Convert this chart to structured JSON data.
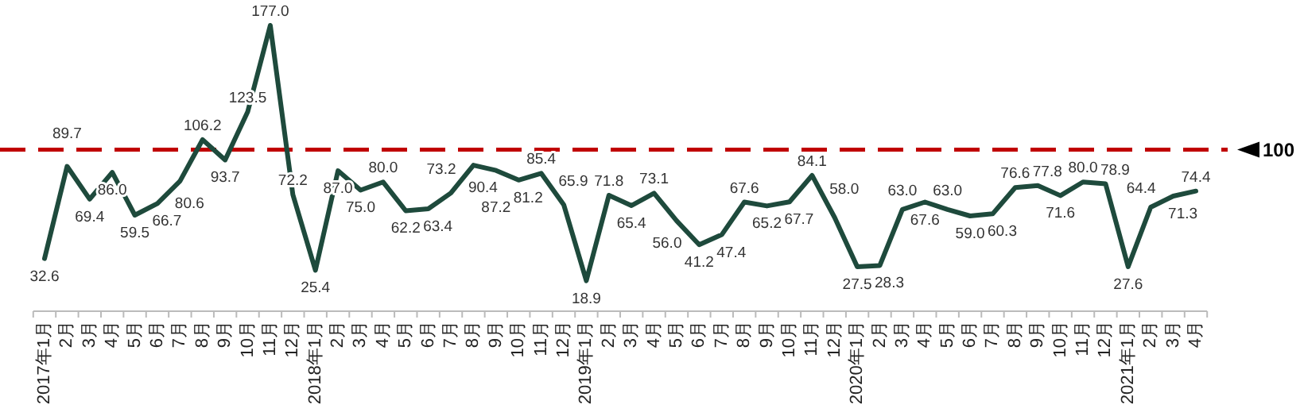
{
  "chart_data": {
    "type": "line",
    "categories": [
      "2017年1月",
      "2月",
      "3月",
      "4月",
      "5月",
      "6月",
      "7月",
      "8月",
      "9月",
      "10月",
      "11月",
      "12月",
      "2018年1月",
      "2月",
      "3月",
      "4月",
      "5月",
      "6月",
      "7月",
      "8月",
      "9月",
      "10月",
      "11月",
      "12月",
      "2019年1月",
      "2月",
      "3月",
      "4月",
      "5月",
      "6月",
      "7月",
      "8月",
      "9月",
      "10月",
      "11月",
      "12月",
      "2020年1月",
      "2月",
      "3月",
      "4月",
      "5月",
      "6月",
      "7月",
      "8月",
      "9月",
      "10月",
      "11月",
      "12月",
      "2021年1月",
      "2月",
      "3月",
      "4月"
    ],
    "series": [
      {
        "color": "#1e4a3c",
        "values": [
          32.6,
          89.7,
          69.4,
          86.0,
          59.5,
          66.7,
          80.6,
          106.2,
          93.7,
          123.5,
          177.0,
          72.2,
          25.4,
          87.0,
          75.0,
          80.0,
          62.2,
          63.4,
          73.2,
          90.4,
          87.2,
          81.2,
          85.4,
          65.9,
          18.9,
          71.8,
          65.4,
          73.1,
          56.0,
          41.2,
          47.4,
          67.6,
          65.2,
          67.7,
          84.1,
          58.0,
          27.5,
          28.3,
          63.0,
          67.6,
          63.0,
          59.0,
          60.3,
          76.6,
          77.8,
          71.6,
          80.0,
          78.9,
          27.6,
          64.4,
          71.3,
          74.4
        ],
        "value_labels": [
          "32.6",
          "89.7",
          "69.4",
          "86.0",
          "59.5",
          "66.7",
          "80.6",
          "106.2",
          "93.7",
          "123.5",
          "177.0",
          "72.2",
          "25.4",
          "87.0",
          "75.0",
          "80.0",
          "62.2",
          "63.4",
          "73.2",
          "90.4",
          "87.2",
          "81.2",
          "85.4",
          "65.9",
          "18.9",
          "71.8",
          "65.4",
          "73.1",
          "56.0",
          "41.2",
          "47.4",
          "67.6",
          "65.2",
          "67.7",
          "84.1",
          "58.0",
          "27.5",
          "28.3",
          "63.0",
          "67.6",
          "63.0",
          "59.0",
          "60.3",
          "76.6",
          "77.8",
          "71.6",
          "80.0",
          "78.9",
          "27.6",
          "64.4",
          "71.3",
          "74.4"
        ]
      }
    ],
    "ref_lines": [
      {
        "axis": "y",
        "value": 100,
        "label": "100",
        "color": "#c00000",
        "line_style": "dashed"
      }
    ],
    "marker": "none"
  }
}
